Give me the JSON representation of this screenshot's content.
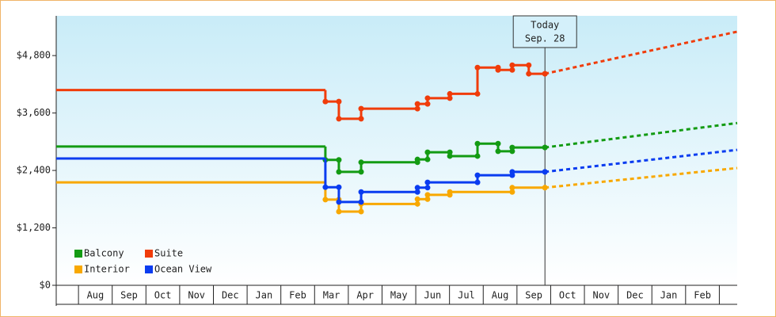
{
  "chart_data": {
    "type": "step",
    "xlim": [
      -0.66,
      19.53
    ],
    "ylim": [
      0,
      5630
    ],
    "yticks": [
      {
        "value": 0,
        "label": "$0"
      },
      {
        "value": 1200,
        "label": "$1,200"
      },
      {
        "value": 2400,
        "label": "$2,400"
      },
      {
        "value": 3600,
        "label": "$3,600"
      },
      {
        "value": 4800,
        "label": "$4,800"
      }
    ],
    "categories": [
      null,
      "Aug",
      "Sep",
      "Oct",
      "Nov",
      "Dec",
      "Jan",
      "Feb",
      "Mar",
      "Apr",
      "May",
      "Jun",
      "Jul",
      "Aug",
      "Sep",
      "Oct",
      "Nov",
      "Dec",
      "Jan",
      "Feb"
    ],
    "projection_x": [
      13.83,
      19.53
    ],
    "annotation": {
      "x": 13.83,
      "lines": [
        "Today",
        "Sep. 28"
      ]
    },
    "series": [
      {
        "name": "Balcony",
        "color": "#139b13",
        "x": [
          -0.66,
          7.32,
          7.72,
          8.38,
          10.05,
          10.35,
          11.01,
          11.83,
          12.44,
          12.86,
          13.83
        ],
        "values": [
          2900,
          2620,
          2370,
          2570,
          2630,
          2780,
          2700,
          2960,
          2800,
          2880,
          2880
        ],
        "projection": [
          2880,
          3390
        ]
      },
      {
        "name": "Suite",
        "color": "#f03c0a",
        "x": [
          -0.66,
          7.32,
          7.72,
          8.38,
          10.05,
          10.35,
          11.01,
          11.83,
          12.44,
          12.86,
          13.35,
          13.83
        ],
        "values": [
          4080,
          3840,
          3480,
          3690,
          3790,
          3910,
          4000,
          4550,
          4500,
          4600,
          4420,
          4420
        ],
        "projection": [
          4420,
          5300
        ]
      },
      {
        "name": "Interior",
        "color": "#f8a800",
        "x": [
          -0.66,
          7.32,
          7.72,
          8.38,
          10.05,
          10.35,
          11.01,
          12.86,
          13.83
        ],
        "values": [
          2150,
          1790,
          1540,
          1700,
          1800,
          1890,
          1950,
          2040,
          2040
        ],
        "projection": [
          2040,
          2450
        ]
      },
      {
        "name": "Ocean View",
        "color": "#0a3cf0",
        "x": [
          -0.66,
          7.32,
          7.72,
          8.38,
          10.05,
          10.35,
          11.83,
          12.86,
          13.83
        ],
        "values": [
          2650,
          2050,
          1740,
          1950,
          2040,
          2150,
          2300,
          2370,
          2370
        ],
        "projection": [
          2370,
          2830
        ]
      }
    ]
  }
}
